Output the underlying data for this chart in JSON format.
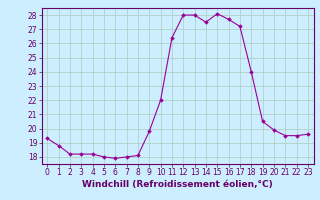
{
  "x": [
    0,
    1,
    2,
    3,
    4,
    5,
    6,
    7,
    8,
    9,
    10,
    11,
    12,
    13,
    14,
    15,
    16,
    17,
    18,
    19,
    20,
    21,
    22,
    23
  ],
  "y": [
    19.3,
    18.8,
    18.2,
    18.2,
    18.2,
    18.0,
    17.9,
    18.0,
    18.1,
    19.8,
    22.0,
    26.4,
    28.0,
    28.0,
    27.5,
    28.1,
    27.7,
    27.2,
    24.0,
    20.5,
    19.9,
    19.5,
    19.5,
    19.6
  ],
  "line_color": "#990099",
  "marker": "D",
  "marker_size": 1.8,
  "line_width": 0.8,
  "xlabel": "Windchill (Refroidissement éolien,°C)",
  "xlabel_fontsize": 6.5,
  "yticks": [
    18,
    19,
    20,
    21,
    22,
    23,
    24,
    25,
    26,
    27,
    28
  ],
  "xticks": [
    0,
    1,
    2,
    3,
    4,
    5,
    6,
    7,
    8,
    9,
    10,
    11,
    12,
    13,
    14,
    15,
    16,
    17,
    18,
    19,
    20,
    21,
    22,
    23
  ],
  "ylim": [
    17.5,
    28.5
  ],
  "xlim": [
    -0.5,
    23.5
  ],
  "bg_color": "#cceeff",
  "grid_color": "#aaccbb",
  "tick_color": "#660066",
  "tick_fontsize": 5.5,
  "spine_color": "#660066"
}
